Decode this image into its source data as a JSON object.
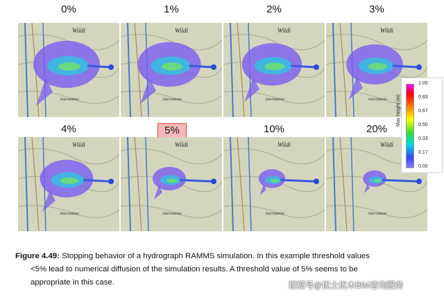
{
  "panels": [
    {
      "label": "0%",
      "highlight": false,
      "spread": 1.0
    },
    {
      "label": "1%",
      "highlight": false,
      "spread": 0.95
    },
    {
      "label": "2%",
      "highlight": false,
      "spread": 0.9
    },
    {
      "label": "3%",
      "highlight": false,
      "spread": 0.85
    },
    {
      "label": "4%",
      "highlight": false,
      "spread": 0.8
    },
    {
      "label": "5%",
      "highlight": true,
      "spread": 0.5
    },
    {
      "label": "10%",
      "highlight": false,
      "spread": 0.4
    },
    {
      "label": "20%",
      "highlight": false,
      "spread": 0.35
    }
  ],
  "map_text": {
    "place": "Wildi",
    "place2": "Attermänne"
  },
  "colorbar": {
    "title": "Max height (m)",
    "ticks": [
      "1.00",
      "0.83",
      "0.67",
      "0.50",
      "0.33",
      "0.17",
      "0.00"
    ]
  },
  "caption": {
    "label": "Figure 4.49:",
    "line1": "Stopping behavior of a hydrograph RAMMS simulation. In this example threshold values",
    "line2": "<5% lead to numerical diffusion of the simulation results.  A threshold value of 5% seems to be",
    "line3": "appropriate in this case."
  },
  "watermark": "搜狐号@优土优木BIM咨询服务"
}
